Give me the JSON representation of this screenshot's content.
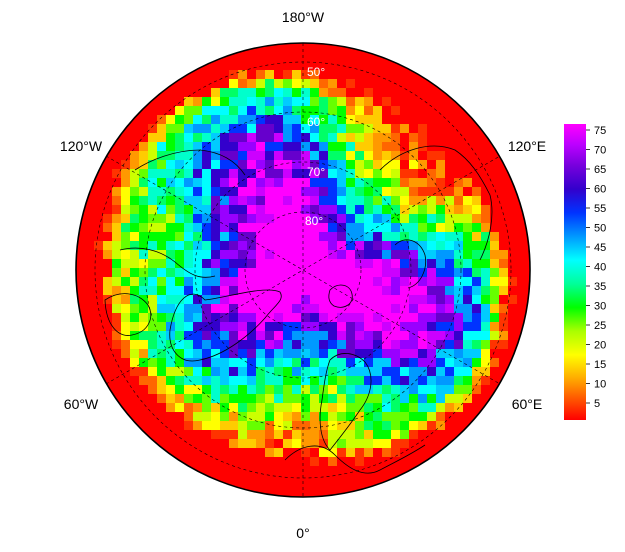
{
  "map": {
    "projection": "north polar stereographic",
    "longitude_labels": {
      "top": "180°W",
      "upper_left": "120°W",
      "upper_right": "120°E",
      "lower_left": "60°W",
      "lower_right": "60°E",
      "bottom": "0°"
    },
    "latitude_labels": [
      "50°",
      "60°",
      "70°",
      "80°"
    ],
    "palette": [
      "#ff0000",
      "#ff3300",
      "#ff6600",
      "#ff9900",
      "#ffcc00",
      "#ffff00",
      "#ccff00",
      "#66ff00",
      "#00ff00",
      "#00ff66",
      "#00ffcc",
      "#00ffff",
      "#00ccff",
      "#0099ff",
      "#0033ff",
      "#3300cc",
      "#6600cc",
      "#9900ff",
      "#cc00ff",
      "#ff00ff"
    ]
  },
  "colorbar": {
    "ticks": [
      "75",
      "70",
      "65",
      "60",
      "55",
      "50",
      "45",
      "40",
      "35",
      "30",
      "25",
      "20",
      "15",
      "10",
      "5"
    ],
    "min": 0,
    "max": 78
  }
}
